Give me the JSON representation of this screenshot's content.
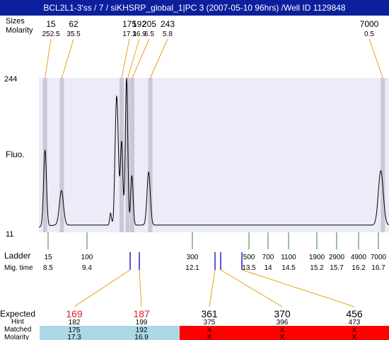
{
  "title": "BCL2L1-3'ss / 7 / siKHSRP_global_1|PC 3 (2007-05-10 96hrs) /Well ID 1129848",
  "header": {
    "sizes_label": "Sizes",
    "molarity_label": "Molarity"
  },
  "peaks": [
    {
      "size": "15",
      "molarity": "252.5",
      "mig_time": 8.45
    },
    {
      "size": "62",
      "molarity": "35.5",
      "mig_time": 8.86
    },
    {
      "size": "175",
      "molarity": "17.3",
      "mig_time": 10.32
    },
    {
      "size": "192",
      "molarity": "16.9",
      "mig_time": 10.47
    },
    {
      "size": "205",
      "molarity": "6.5",
      "mig_time": 10.58
    },
    {
      "size": "243",
      "molarity": "5.8",
      "mig_time": 11.02
    },
    {
      "size": "7000",
      "molarity": "0.5",
      "mig_time": 16.7
    }
  ],
  "y_axis": {
    "label": "Fluo.",
    "top_label": "244",
    "bottom_label": "11"
  },
  "chart_data": {
    "type": "line",
    "x_label": "Mig. time",
    "y_label": "Fluo.",
    "xlim": [
      8.3,
      16.85
    ],
    "ylim": [
      11,
      244
    ],
    "baseline": 22,
    "trace_peaks": [
      {
        "x": 8.45,
        "height": 115,
        "width": 0.035
      },
      {
        "x": 8.85,
        "height": 52,
        "width": 0.05
      },
      {
        "x": 10.05,
        "height": 18,
        "width": 0.02
      },
      {
        "x": 10.2,
        "height": 195,
        "width": 0.04
      },
      {
        "x": 10.32,
        "height": 125,
        "width": 0.03
      },
      {
        "x": 10.44,
        "height": 222,
        "width": 0.03
      },
      {
        "x": 10.57,
        "height": 75,
        "width": 0.03
      },
      {
        "x": 10.98,
        "height": 80,
        "width": 0.04
      },
      {
        "x": 16.65,
        "height": 82,
        "width": 0.06
      }
    ],
    "trace_dips": [
      {
        "x": 10.12,
        "depth": 8,
        "width": 0.015
      },
      {
        "x": 10.41,
        "depth": 6,
        "width": 0.012
      },
      {
        "x": 10.52,
        "depth": 5,
        "width": 0.012
      }
    ]
  },
  "ladder": {
    "label": "Ladder",
    "mig_label": "Mig. time",
    "items": [
      {
        "size": "15",
        "time": "8.5"
      },
      {
        "size": "100",
        "time": "9.4"
      },
      {
        "size": "300",
        "time": "12.1"
      },
      {
        "size": "500",
        "time": "13.5"
      },
      {
        "size": "700",
        "time": "14"
      },
      {
        "size": "1100",
        "time": "14.5"
      },
      {
        "size": "1900",
        "time": "15.2"
      },
      {
        "size": "2900",
        "time": "15.7"
      },
      {
        "size": "4900",
        "time": "16.2"
      },
      {
        "size": "7000",
        "time": "16.7"
      }
    ]
  },
  "expected": {
    "label": "Expected",
    "hint_label": "Hint",
    "matched_label": "Matched",
    "molarity_label": "Molarity",
    "items": [
      {
        "size": "169",
        "hint": "182",
        "matched": "175",
        "molarity": "17.3",
        "status": "matched",
        "marker_time": 10.32
      },
      {
        "size": "187",
        "hint": "199",
        "matched": "192",
        "molarity": "16.9",
        "status": "matched",
        "marker_time": 10.47
      },
      {
        "size": "361",
        "hint": "375",
        "matched": "X",
        "molarity": "X",
        "status": "missing",
        "marker_time": 12.72
      },
      {
        "size": "370",
        "hint": "396",
        "matched": "X",
        "molarity": "X",
        "status": "missing",
        "marker_time": 12.86
      },
      {
        "size": "456",
        "hint": "473",
        "matched": "X",
        "molarity": "X",
        "status": "missing",
        "marker_time": 13.45
      }
    ]
  },
  "colors": {
    "plot_bg": "#ececf8",
    "band": "#c8c8d8",
    "peak_line": "#e8a020",
    "ladder_tick": "#2e8b2e",
    "marker": "#2020cc",
    "expected_red_text": "#dd2222",
    "matched_bg": "#add8e6",
    "missing_bg": "#ff0000"
  }
}
